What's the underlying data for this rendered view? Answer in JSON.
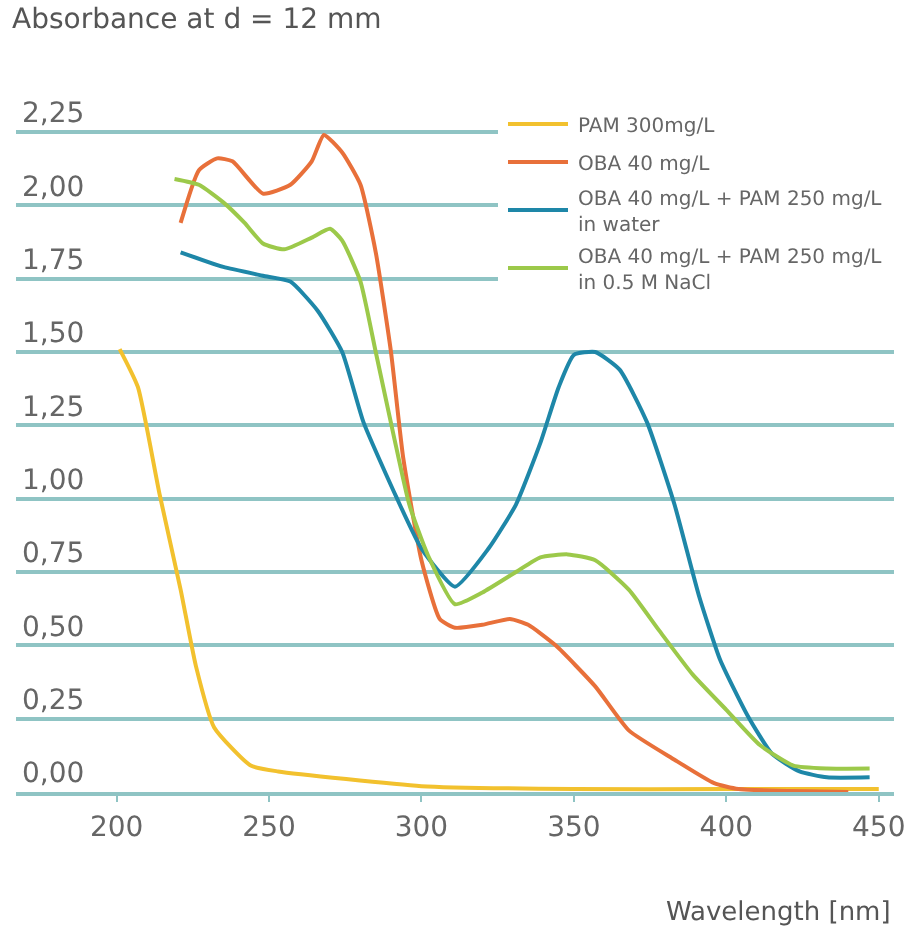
{
  "chart_data": {
    "type": "line",
    "ylabel": "Absorbance at d = 12 mm",
    "xlabel": "Wavelength [nm]",
    "xlim": [
      167,
      455
    ],
    "xticks": [
      200,
      250,
      300,
      350,
      400,
      450
    ],
    "ylim": [
      0,
      2.7
    ],
    "yticks": [
      {
        "value": 0,
        "label": "0,00"
      },
      {
        "value": 0.25,
        "label": "0,25"
      },
      {
        "value": 0.5,
        "label": "0,50"
      },
      {
        "value": 0.75,
        "label": "0,75"
      },
      {
        "value": 1,
        "label": "1,00"
      },
      {
        "value": 1.25,
        "label": "1,25"
      },
      {
        "value": 1.5,
        "label": "1,50"
      },
      {
        "value": 1.75,
        "label": "1,75"
      },
      {
        "value": 2,
        "label": "2,00"
      },
      {
        "value": 2.25,
        "label": "2,25"
      }
    ],
    "grid": "y",
    "legend": "top right",
    "marker": "none",
    "line_style": "solid",
    "series": [
      {
        "name": "PAM 300mg/L",
        "color": "#f2c12e",
        "x": [
          201,
          207,
          214,
          221,
          226,
          232,
          244,
          253,
          300,
          350,
          400,
          450
        ],
        "values": [
          1.51,
          1.38,
          1.02,
          0.69,
          0.43,
          0.22,
          0.09,
          0.07,
          0.02,
          0.01,
          0.01,
          0.01
        ]
      },
      {
        "name": "OBA 40 mg/L",
        "color": "#e8703a",
        "x": [
          221,
          227,
          233,
          238,
          248,
          257,
          264,
          268,
          274,
          280,
          285,
          290,
          294,
          300,
          306,
          311,
          320,
          329,
          335,
          344,
          357,
          368,
          383,
          396,
          404,
          440
        ],
        "values": [
          1.94,
          2.12,
          2.16,
          2.15,
          2.04,
          2.07,
          2.15,
          2.24,
          2.18,
          2.07,
          1.84,
          1.5,
          1.14,
          0.79,
          0.59,
          0.56,
          0.57,
          0.59,
          0.57,
          0.5,
          0.36,
          0.21,
          0.11,
          0.03,
          0.01,
          0.0
        ]
      },
      {
        "name": "OBA 40 mg/L + PAM 250 mg/L\nin water",
        "color": "#1e87a8",
        "x": [
          221,
          235,
          248,
          257,
          266,
          274,
          281,
          292,
          300,
          311,
          322,
          331,
          339,
          345,
          350,
          357,
          365,
          374,
          383,
          391,
          398,
          407,
          415,
          424,
          433,
          447
        ],
        "values": [
          1.84,
          1.79,
          1.76,
          1.74,
          1.64,
          1.5,
          1.26,
          1.0,
          0.83,
          0.7,
          0.83,
          0.98,
          1.19,
          1.38,
          1.49,
          1.5,
          1.44,
          1.26,
          0.98,
          0.67,
          0.45,
          0.26,
          0.13,
          0.07,
          0.05,
          0.05
        ]
      },
      {
        "name": "OBA 40 mg/L + PAM 250 mg/L\nin 0.5 M NaCl",
        "color": "#9cc94a",
        "x": [
          219,
          227,
          235,
          242,
          248,
          255,
          264,
          270,
          274,
          280,
          285,
          291,
          296,
          302,
          311,
          320,
          331,
          339,
          348,
          357,
          368,
          378,
          389,
          400,
          411,
          422,
          433,
          447
        ],
        "values": [
          2.09,
          2.07,
          2.01,
          1.94,
          1.87,
          1.85,
          1.89,
          1.92,
          1.88,
          1.74,
          1.5,
          1.21,
          0.98,
          0.81,
          0.64,
          0.68,
          0.75,
          0.8,
          0.81,
          0.79,
          0.69,
          0.55,
          0.4,
          0.28,
          0.16,
          0.09,
          0.08,
          0.08
        ]
      }
    ]
  }
}
